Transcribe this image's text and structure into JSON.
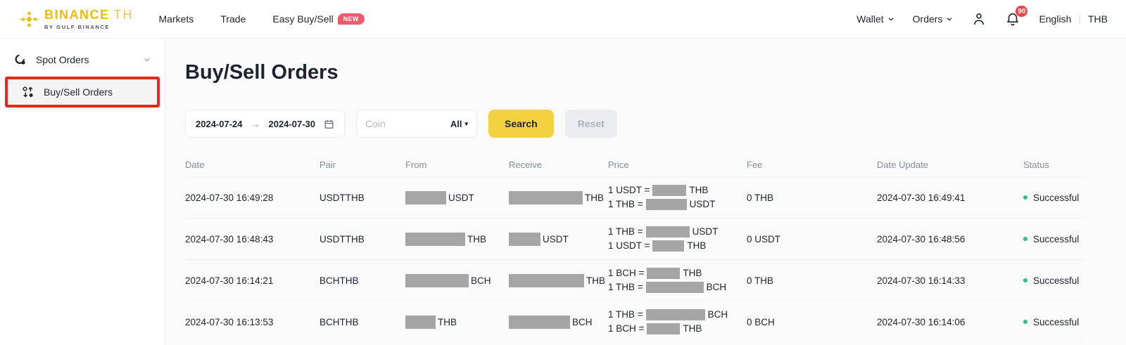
{
  "header": {
    "logo": {
      "brand": "BINANCE",
      "region": "TH",
      "tagline": "BY GULF BINANCE"
    },
    "nav_items": [
      {
        "label": "Markets"
      },
      {
        "label": "Trade"
      },
      {
        "label": "Easy Buy/Sell",
        "badge": "NEW"
      }
    ],
    "wallet_label": "Wallet",
    "orders_label": "Orders",
    "notification_count": "90",
    "language": "English",
    "currency": "THB"
  },
  "sidebar": {
    "items": [
      {
        "label": "Spot Orders"
      },
      {
        "label": "Buy/Sell Orders"
      }
    ]
  },
  "main": {
    "title": "Buy/Sell Orders",
    "filters": {
      "date_from": "2024-07-24",
      "date_arrow": "→",
      "date_to": "2024-07-30",
      "coin_placeholder": "Coin",
      "coin_value": "All",
      "search_label": "Search",
      "reset_label": "Reset"
    },
    "table": {
      "columns": [
        "Date",
        "Pair",
        "From",
        "Receive",
        "Price",
        "Fee",
        "Date Update",
        "Status"
      ],
      "rows": [
        {
          "date": "2024-07-30 16:49:28",
          "pair": "USDTTHB",
          "from": {
            "redacted_width": 58,
            "unit": "USDT"
          },
          "receive": {
            "redacted_width": 105,
            "unit": "THB"
          },
          "price_lines": [
            {
              "prefix": "1 USDT =",
              "redacted_width": 48,
              "suffix": "THB"
            },
            {
              "prefix": "1 THB =",
              "redacted_width": 58,
              "suffix": "USDT"
            }
          ],
          "fee": "0 THB",
          "date_update": "2024-07-30 16:49:41",
          "status": "Successful"
        },
        {
          "date": "2024-07-30 16:48:43",
          "pair": "USDTTHB",
          "from": {
            "redacted_width": 85,
            "unit": "THB"
          },
          "receive": {
            "redacted_width": 45,
            "unit": "USDT"
          },
          "price_lines": [
            {
              "prefix": "1 THB =",
              "redacted_width": 62,
              "suffix": "USDT"
            },
            {
              "prefix": "1 USDT =",
              "redacted_width": 45,
              "suffix": "THB"
            }
          ],
          "fee": "0 USDT",
          "date_update": "2024-07-30 16:48:56",
          "status": "Successful"
        },
        {
          "date": "2024-07-30 16:14:21",
          "pair": "BCHTHB",
          "from": {
            "redacted_width": 90,
            "unit": "BCH"
          },
          "receive": {
            "redacted_width": 107,
            "unit": "THB"
          },
          "price_lines": [
            {
              "prefix": "1 BCH =",
              "redacted_width": 47,
              "suffix": "THB"
            },
            {
              "prefix": "1 THB =",
              "redacted_width": 82,
              "suffix": "BCH"
            }
          ],
          "fee": "0 THB",
          "date_update": "2024-07-30 16:14:33",
          "status": "Successful"
        },
        {
          "date": "2024-07-30 16:13:53",
          "pair": "BCHTHB",
          "from": {
            "redacted_width": 43,
            "unit": "THB"
          },
          "receive": {
            "redacted_width": 87,
            "unit": "BCH"
          },
          "price_lines": [
            {
              "prefix": "1 THB =",
              "redacted_width": 84,
              "suffix": "BCH"
            },
            {
              "prefix": "1 BCH =",
              "redacted_width": 47,
              "suffix": "THB"
            }
          ],
          "fee": "0 BCH",
          "date_update": "2024-07-30 16:14:06",
          "status": "Successful"
        }
      ]
    }
  },
  "colors": {
    "brand_gold": "#F0B90B",
    "search_yellow": "#F4D13F",
    "new_badge_red": "#EE5A6A",
    "notification_red": "#EF454A",
    "status_green": "#34BD85",
    "annotation_red": "#E22A1D",
    "redaction_gray": "#A5A5A5",
    "text_dark": "#1E2330",
    "text_gray": "#848E9C"
  }
}
